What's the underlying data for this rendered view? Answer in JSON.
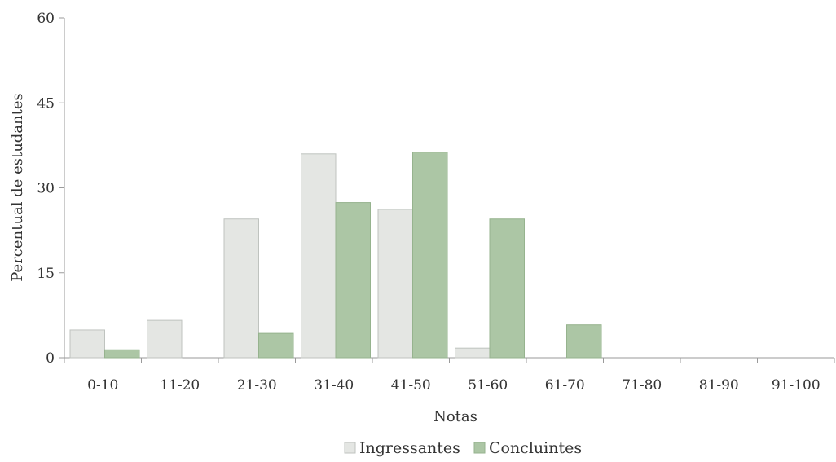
{
  "chart_data": {
    "type": "bar",
    "title": "",
    "xlabel": "Notas",
    "ylabel": "Percentual de estudantes",
    "ylim": [
      0,
      60
    ],
    "yticks": [
      0,
      15,
      30,
      45,
      60
    ],
    "grid": false,
    "legend_position": "bottom",
    "categories": [
      "0-10",
      "11-20",
      "21-30",
      "31-40",
      "41-50",
      "51-60",
      "61-70",
      "71-80",
      "81-90",
      "91-100"
    ],
    "series": [
      {
        "name": "Ingressantes",
        "color": "#e4e6e3",
        "stroke": "#bfc3bf",
        "values": [
          4.9,
          6.6,
          24.5,
          36.0,
          26.2,
          1.7,
          0,
          0,
          0,
          0
        ]
      },
      {
        "name": "Concluintes",
        "color": "#acc6a5",
        "stroke": "#96b38e",
        "values": [
          1.4,
          0,
          4.3,
          27.4,
          36.3,
          24.5,
          5.8,
          0,
          0,
          0
        ]
      }
    ]
  }
}
